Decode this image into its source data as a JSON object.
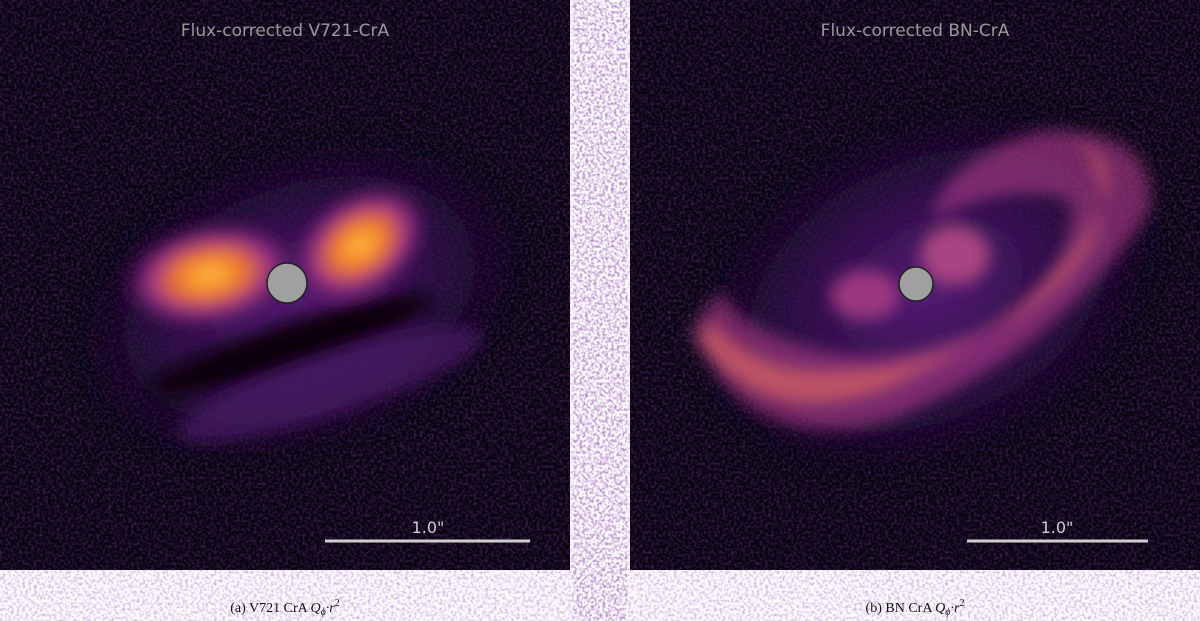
{
  "panels": [
    {
      "title": "Flux-corrected V721-CrA",
      "scale_bar_label": "1.0\"",
      "caption": {
        "text": "(a) V721 CrA",
        "symbol": "Q",
        "subscript": "ϕ",
        "operator": "·r",
        "superscript": "2"
      }
    },
    {
      "title": "Flux-corrected BN-CrA",
      "scale_bar_label": "1.0\"",
      "caption": {
        "text": "(b) BN CrA",
        "symbol": "Q",
        "subscript": "ϕ",
        "operator": "·r",
        "superscript": "2"
      }
    }
  ]
}
